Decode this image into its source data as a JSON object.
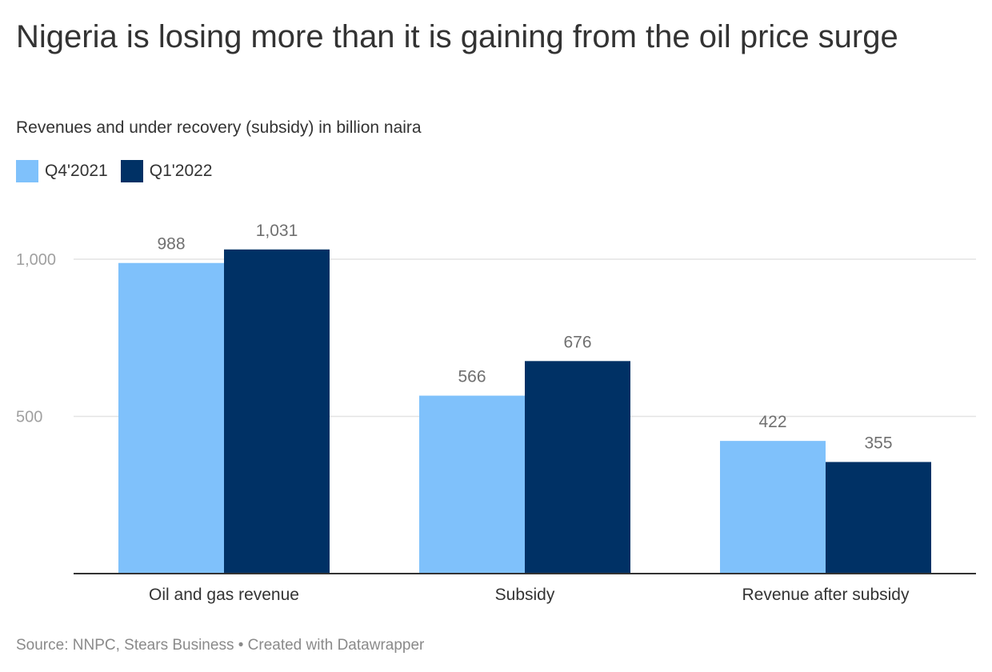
{
  "header": {
    "title": "Nigeria is losing more than it is gaining from the oil price surge",
    "subtitle": "Revenues and under recovery (subsidy) in billion naira"
  },
  "footer": {
    "source": "Source: NNPC, Stears Business • Created with Datawrapper"
  },
  "colors": {
    "q4_2021": "#7fc1fb",
    "q1_2022": "#003165",
    "gridline": "#e3e3e3",
    "axis": "#333333",
    "tick_label": "#a0a0a0",
    "value_label": "#707070"
  },
  "chart_data": {
    "type": "bar",
    "categories": [
      "Oil and gas revenue",
      "Subsidy",
      "Revenue after subsidy"
    ],
    "series": [
      {
        "name": "Q4'2021",
        "values": [
          988,
          566,
          422
        ],
        "value_labels": [
          "988",
          "566",
          "422"
        ]
      },
      {
        "name": "Q1'2022",
        "values": [
          1031,
          676,
          355
        ],
        "value_labels": [
          "1,031",
          "676",
          "355"
        ]
      }
    ],
    "yticks": [
      500,
      1000
    ],
    "ytick_labels": [
      "500",
      "1,000"
    ],
    "ylim": [
      0,
      1000
    ],
    "grid": true,
    "legend_position": "top-left",
    "xlabel": "",
    "ylabel": ""
  }
}
